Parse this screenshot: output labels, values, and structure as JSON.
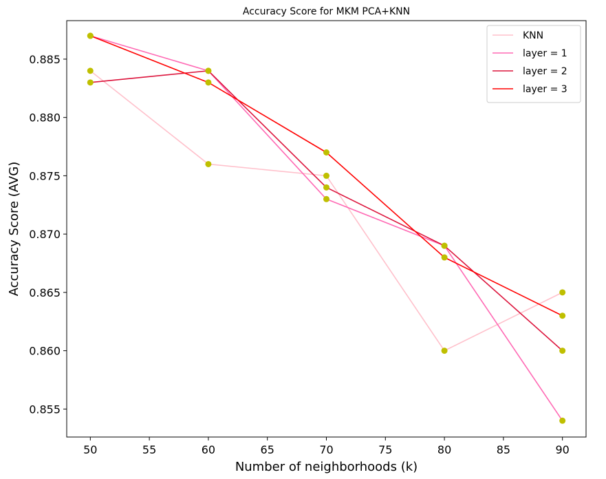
{
  "chart_data": {
    "type": "line",
    "title": "Accuracy Score for MKM PCA+KNN",
    "xlabel": "Number of neighborhoods (k)",
    "ylabel": "Accuracy Score (AVG)",
    "xlim": [
      48,
      92
    ],
    "ylim": [
      0.8526,
      0.8883
    ],
    "xticks": [
      50,
      55,
      60,
      65,
      70,
      75,
      80,
      85,
      90
    ],
    "yticks": [
      0.855,
      0.86,
      0.865,
      0.87,
      0.875,
      0.88,
      0.885
    ],
    "xtick_labels": [
      "50",
      "55",
      "60",
      "65",
      "70",
      "75",
      "80",
      "85",
      "90"
    ],
    "ytick_labels": [
      "0.855",
      "0.860",
      "0.865",
      "0.870",
      "0.875",
      "0.880",
      "0.885"
    ],
    "grid": false,
    "legend_position": "top-right",
    "marker_color": "#bfbf00",
    "x": [
      50,
      60,
      70,
      80,
      90
    ],
    "series": [
      {
        "name": "KNN",
        "color": "#ffc0cb",
        "values": [
          0.884,
          0.876,
          0.875,
          0.86,
          0.865
        ]
      },
      {
        "name": "layer = 1",
        "color": "#ff69b4",
        "values": [
          0.887,
          0.884,
          0.873,
          0.869,
          0.854
        ]
      },
      {
        "name": "layer = 2",
        "color": "#dc143c",
        "values": [
          0.883,
          0.884,
          0.874,
          0.869,
          0.86
        ]
      },
      {
        "name": "layer = 3",
        "color": "#ff0000",
        "values": [
          0.887,
          0.883,
          0.877,
          0.868,
          0.863
        ]
      }
    ]
  }
}
